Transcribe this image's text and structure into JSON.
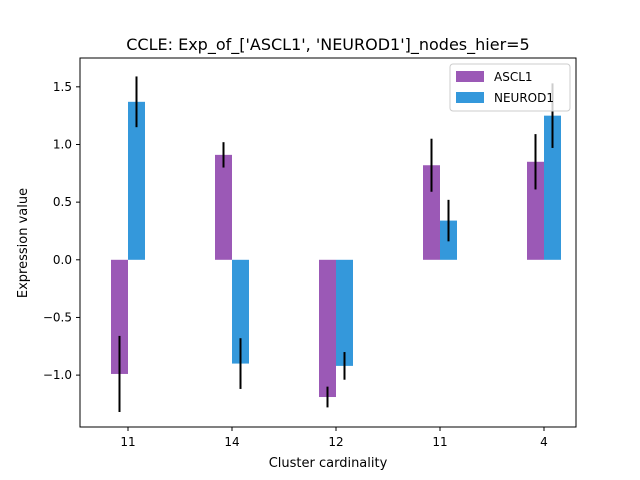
{
  "chart_data": {
    "type": "bar",
    "title": "CCLE: Exp_of_['ASCL1', 'NEUROD1']_nodes_hier=5",
    "xlabel": "Cluster cardinality",
    "ylabel": "Expression value",
    "categories": [
      "11",
      "14",
      "12",
      "11",
      "4"
    ],
    "ylim": [
      -1.45,
      1.75
    ],
    "yticks": [
      -1.0,
      -0.5,
      0.0,
      0.5,
      1.0,
      1.5
    ],
    "ytick_labels": [
      "−1.0",
      "−0.5",
      "0.0",
      "0.5",
      "1.0",
      "1.5"
    ],
    "grid": false,
    "legend_position": "top-right",
    "series": [
      {
        "name": "ASCL1",
        "color": "#9b59b6",
        "values": [
          -0.99,
          0.91,
          -1.19,
          0.82,
          0.85
        ],
        "errors": [
          0.33,
          0.11,
          0.09,
          0.23,
          0.24
        ]
      },
      {
        "name": "NEUROD1",
        "color": "#3498db",
        "values": [
          1.37,
          -0.9,
          -0.92,
          0.34,
          1.25
        ],
        "errors": [
          0.22,
          0.22,
          0.12,
          0.18,
          0.28
        ]
      }
    ]
  }
}
